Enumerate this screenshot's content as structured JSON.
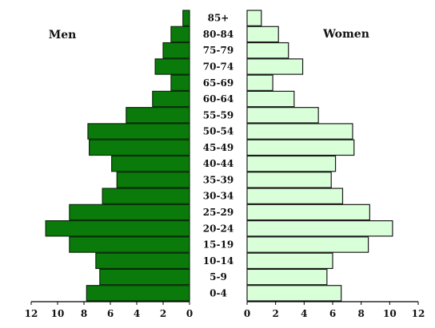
{
  "chart_data": {
    "type": "bar",
    "orientation": "population-pyramid",
    "categories": [
      "0-4",
      "5-9",
      "10-14",
      "15-19",
      "20-24",
      "25-29",
      "30-34",
      "35-39",
      "40-44",
      "45-49",
      "50-54",
      "55-59",
      "60-64",
      "65-69",
      "70-74",
      "75-79",
      "80-84",
      "85+"
    ],
    "series": [
      {
        "name": "Men",
        "color": "#0a7a0a",
        "values": [
          7.8,
          6.8,
          7.1,
          9.1,
          10.9,
          9.1,
          6.6,
          5.5,
          5.9,
          7.6,
          7.7,
          4.8,
          2.8,
          1.4,
          2.6,
          2.0,
          1.4,
          0.5
        ]
      },
      {
        "name": "Women",
        "color": "#d9ffd9",
        "values": [
          6.6,
          5.6,
          6.0,
          8.5,
          10.2,
          8.6,
          6.7,
          5.9,
          6.2,
          7.5,
          7.4,
          5.0,
          3.3,
          1.8,
          3.9,
          2.9,
          2.2,
          1.0
        ]
      }
    ],
    "xlim": [
      0,
      12
    ],
    "xticks_left": [
      "12",
      "10",
      "8",
      "6",
      "4",
      "2",
      "0"
    ],
    "xticks_right": [
      "0",
      "2",
      "4",
      "6",
      "8",
      "10",
      "12"
    ],
    "labels": {
      "left": "Men",
      "right": "Women"
    },
    "grid": false,
    "legend": "none"
  }
}
